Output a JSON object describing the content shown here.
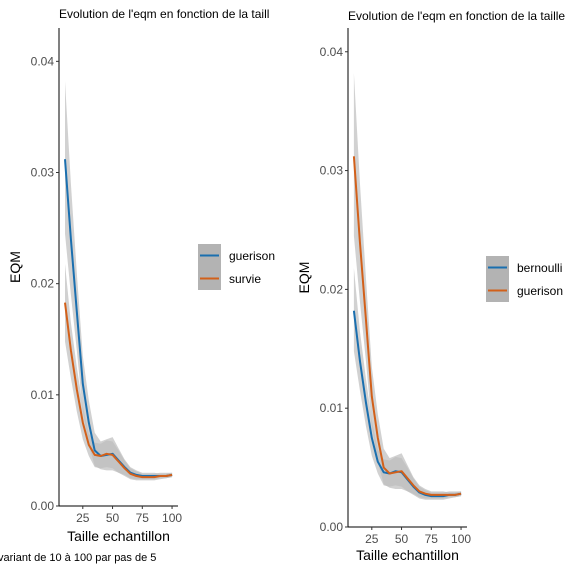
{
  "caption": "variant de 10 à 100 par pas de 5",
  "chart_data": [
    {
      "type": "line",
      "title": "Evolution de l'eqm en fonction de la taill",
      "xlabel": "Taille echantillon",
      "ylabel": "EQM",
      "xlim": [
        5,
        105
      ],
      "ylim": [
        0,
        0.043
      ],
      "xticks": [
        25,
        50,
        75,
        100
      ],
      "xtick_labels": [
        "25",
        "50",
        "75",
        "100"
      ],
      "yticks": [
        0,
        0.01,
        0.02,
        0.03,
        0.04
      ],
      "ytick_labels": [
        "0.00",
        "0.01",
        "0.02",
        "0.03",
        "0.04"
      ],
      "legend_placement": "right",
      "confidence_band": true,
      "band_color": "#bdbdbd",
      "x": [
        10,
        15,
        20,
        25,
        30,
        35,
        40,
        45,
        50,
        55,
        60,
        65,
        70,
        75,
        80,
        85,
        90,
        95,
        100
      ],
      "series": [
        {
          "name": "guerison",
          "color": "#1a6faf",
          "values": [
            0.0312,
            0.024,
            0.0175,
            0.011,
            0.0075,
            0.005,
            0.0045,
            0.0046,
            0.0047,
            0.0041,
            0.0035,
            0.003,
            0.0028,
            0.0027,
            0.0027,
            0.0027,
            0.0027,
            0.0027,
            0.0028
          ],
          "lower": [
            0.0245,
            0.019,
            0.014,
            0.0085,
            0.0055,
            0.0036,
            0.0033,
            0.0032,
            0.0032,
            0.003,
            0.0028,
            0.0025,
            0.0024,
            0.0024,
            0.0024,
            0.0024,
            0.0025,
            0.0025,
            0.0026
          ],
          "upper": [
            0.0382,
            0.029,
            0.021,
            0.0135,
            0.0095,
            0.0066,
            0.0058,
            0.006,
            0.0062,
            0.0052,
            0.0042,
            0.0035,
            0.0032,
            0.003,
            0.003,
            0.003,
            0.0029,
            0.0029,
            0.003
          ]
        },
        {
          "name": "survie",
          "color": "#d2601a",
          "values": [
            0.0183,
            0.014,
            0.0105,
            0.0075,
            0.0055,
            0.0046,
            0.0045,
            0.0047,
            0.0046,
            0.004,
            0.0034,
            0.0029,
            0.0027,
            0.0026,
            0.0026,
            0.0026,
            0.0027,
            0.0027,
            0.0028
          ],
          "lower": [
            0.0148,
            0.0115,
            0.0085,
            0.006,
            0.0045,
            0.0035,
            0.0034,
            0.0035,
            0.0034,
            0.003,
            0.0027,
            0.0024,
            0.0023,
            0.0023,
            0.0023,
            0.0023,
            0.0024,
            0.0025,
            0.0026
          ],
          "upper": [
            0.0218,
            0.0165,
            0.0125,
            0.009,
            0.0065,
            0.0057,
            0.0056,
            0.0059,
            0.0058,
            0.005,
            0.0041,
            0.0034,
            0.0031,
            0.0029,
            0.0029,
            0.0029,
            0.003,
            0.003,
            0.003
          ]
        }
      ]
    },
    {
      "type": "line",
      "title": "Evolution de l'eqm en fonction de la taille",
      "xlabel": "Taille echantillon",
      "ylabel": "EQM",
      "xlim": [
        5,
        105
      ],
      "ylim": [
        0,
        0.042
      ],
      "xticks": [
        25,
        50,
        75,
        100
      ],
      "xtick_labels": [
        "25",
        "50",
        "75",
        "100"
      ],
      "yticks": [
        0,
        0.01,
        0.02,
        0.03,
        0.04
      ],
      "ytick_labels": [
        "0.00",
        "0.01",
        "0.02",
        "0.03",
        "0.04"
      ],
      "legend_placement": "right",
      "confidence_band": true,
      "band_color": "#bdbdbd",
      "x": [
        10,
        15,
        20,
        25,
        30,
        35,
        40,
        45,
        50,
        55,
        60,
        65,
        70,
        75,
        80,
        85,
        90,
        95,
        100
      ],
      "series": [
        {
          "name": "bernoulli",
          "color": "#1a6faf",
          "values": [
            0.0182,
            0.014,
            0.0105,
            0.0075,
            0.0055,
            0.0046,
            0.0045,
            0.0047,
            0.0046,
            0.004,
            0.0034,
            0.0029,
            0.0027,
            0.0026,
            0.0026,
            0.0026,
            0.0027,
            0.0027,
            0.0028
          ],
          "lower": [
            0.0148,
            0.0115,
            0.0085,
            0.006,
            0.0045,
            0.0035,
            0.0034,
            0.0035,
            0.0034,
            0.003,
            0.0027,
            0.0024,
            0.0023,
            0.0023,
            0.0023,
            0.0023,
            0.0024,
            0.0025,
            0.0026
          ],
          "upper": [
            0.0218,
            0.0165,
            0.0125,
            0.009,
            0.0065,
            0.0057,
            0.0056,
            0.0059,
            0.0058,
            0.005,
            0.0041,
            0.0034,
            0.0031,
            0.0029,
            0.0029,
            0.0029,
            0.003,
            0.003,
            0.003
          ]
        },
        {
          "name": "guerison",
          "color": "#d2601a",
          "values": [
            0.0312,
            0.024,
            0.0175,
            0.011,
            0.0075,
            0.005,
            0.0045,
            0.0046,
            0.0047,
            0.0041,
            0.0035,
            0.003,
            0.0028,
            0.0027,
            0.0027,
            0.0027,
            0.0027,
            0.0027,
            0.0028
          ],
          "lower": [
            0.0245,
            0.019,
            0.014,
            0.0085,
            0.0055,
            0.0036,
            0.0033,
            0.0032,
            0.0032,
            0.003,
            0.0028,
            0.0025,
            0.0024,
            0.0024,
            0.0024,
            0.0024,
            0.0025,
            0.0025,
            0.0026
          ],
          "upper": [
            0.0382,
            0.029,
            0.021,
            0.0135,
            0.0095,
            0.0066,
            0.0058,
            0.006,
            0.0062,
            0.0052,
            0.0042,
            0.0035,
            0.0032,
            0.003,
            0.003,
            0.003,
            0.0029,
            0.0029,
            0.003
          ]
        }
      ]
    }
  ]
}
